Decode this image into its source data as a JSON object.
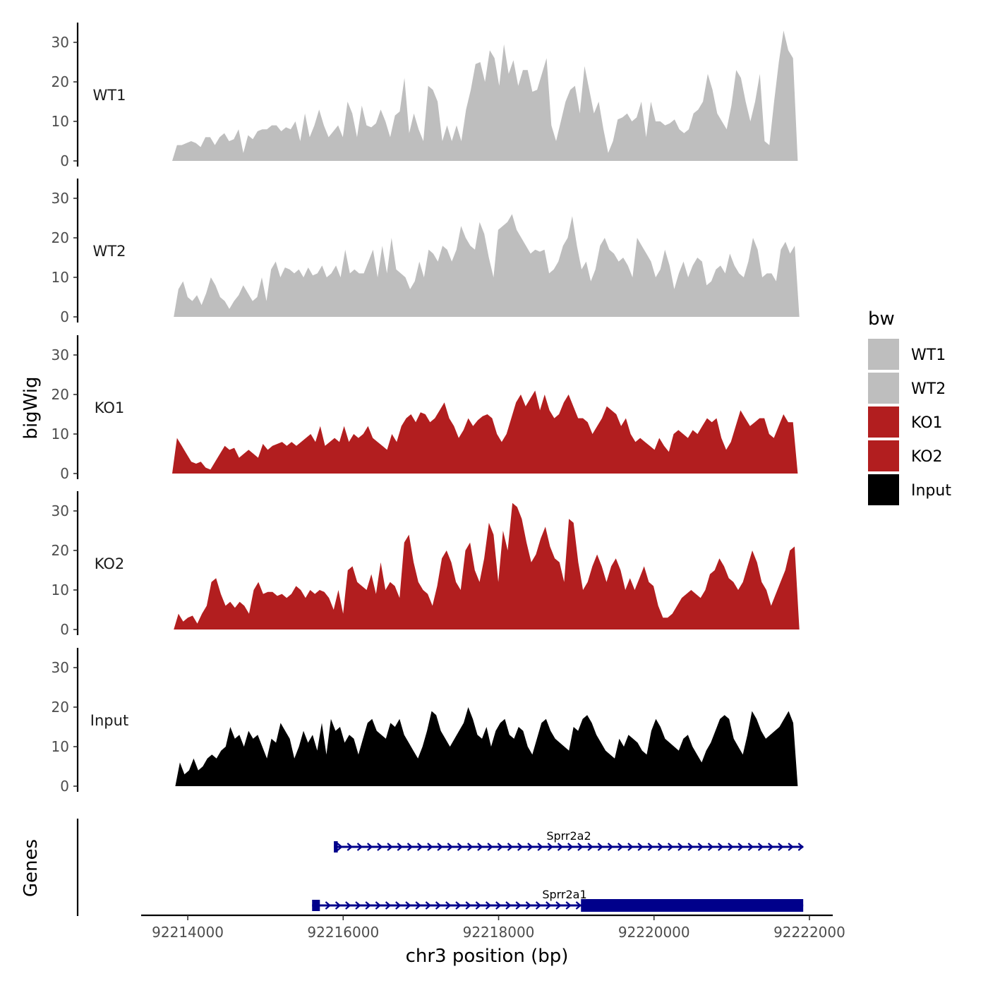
{
  "chart_data": {
    "type": "area",
    "ylabel": "bigWig",
    "xlabel": "chr3 position (bp)",
    "genes_label": "Genes",
    "ylim": [
      0,
      35
    ],
    "yticks": [
      0,
      10,
      20,
      30
    ],
    "xlim": [
      92213400,
      92222300
    ],
    "xticks": [
      92214000,
      92216000,
      92218000,
      92220000,
      92222000
    ],
    "xtick_labels": [
      "92214000",
      "92216000",
      "92218000",
      "92220000",
      "92222000"
    ],
    "legend": {
      "title": "bw",
      "position": "right",
      "entries": [
        {
          "label": "WT1",
          "color": "#bebebe"
        },
        {
          "label": "WT2",
          "color": "#bebebe"
        },
        {
          "label": "KO1",
          "color": "#b21e1f"
        },
        {
          "label": "KO2",
          "color": "#b21e1f"
        },
        {
          "label": "Input",
          "color": "#000000"
        }
      ]
    },
    "tracks": [
      {
        "name": "WT1",
        "color": "#bebebe",
        "x_start": 92213800,
        "x_end": 92221850,
        "values": [
          0,
          4,
          4,
          4.5,
          5,
          4.5,
          3.5,
          6,
          6,
          4,
          6,
          7,
          5,
          5.5,
          8,
          2,
          6.5,
          5.5,
          7.5,
          8,
          8,
          9,
          9,
          7.5,
          8.5,
          8,
          10,
          5,
          12,
          6,
          9,
          13,
          9,
          6,
          7.5,
          9,
          6,
          15,
          12,
          6,
          14,
          9,
          8.5,
          9.5,
          13,
          10,
          6,
          11.5,
          12.5,
          21,
          7,
          12,
          8,
          5,
          19,
          18,
          15,
          5,
          9,
          5,
          9,
          5,
          13,
          18,
          24.5,
          25,
          20,
          28,
          26,
          19,
          29.5,
          22,
          25.5,
          19,
          23,
          23,
          17.5,
          18,
          22,
          26,
          9,
          5,
          10,
          15,
          18,
          19,
          12,
          24,
          18,
          12,
          15,
          8,
          2,
          5,
          10.5,
          11,
          12,
          10,
          11,
          15,
          6,
          15,
          10,
          10,
          9,
          9.5,
          10.5,
          8,
          7,
          8,
          12,
          13,
          15,
          22,
          18,
          12,
          10,
          8,
          14,
          23,
          21,
          15,
          10,
          15,
          22,
          5,
          4,
          15,
          25,
          33,
          28,
          26,
          0
        ]
      },
      {
        "name": "WT2",
        "color": "#bebebe",
        "x_start": 92213820,
        "x_end": 92221870,
        "values": [
          0,
          7,
          9,
          5,
          4,
          5.5,
          3,
          6,
          10,
          8,
          5,
          4,
          2,
          4,
          5.5,
          8,
          6,
          4,
          5,
          10,
          4,
          12,
          14,
          10,
          12.5,
          12,
          11,
          12,
          10,
          12.5,
          10.5,
          11,
          13,
          10,
          11,
          13,
          10,
          17,
          11,
          12,
          11,
          11,
          14,
          17,
          10,
          18,
          11,
          20,
          12,
          11,
          10,
          7,
          9,
          14,
          10,
          17,
          16,
          14,
          18,
          17,
          14,
          17,
          23,
          20,
          18,
          17,
          24,
          21,
          15,
          10,
          22,
          23,
          24,
          26,
          22,
          20,
          18,
          16,
          17,
          16.5,
          17,
          11,
          12,
          14,
          18,
          20,
          25.5,
          18,
          12,
          14,
          9,
          12,
          18,
          20,
          17,
          16,
          14,
          15,
          13,
          10,
          20,
          18,
          16,
          14,
          10,
          12,
          17,
          13,
          7,
          11,
          14,
          10,
          13,
          15,
          14,
          8,
          9,
          12,
          13,
          11,
          16,
          13,
          11,
          10,
          14,
          20,
          17,
          10,
          11,
          11,
          9,
          17,
          19,
          16,
          18,
          0
        ]
      },
      {
        "name": "KO1",
        "color": "#b21e1f",
        "x_start": 92213800,
        "x_end": 92221850,
        "values": [
          0,
          9,
          7,
          5,
          3,
          2.5,
          3,
          1.5,
          1,
          3,
          5,
          7,
          6,
          6.5,
          4,
          5,
          6,
          5,
          4,
          7.5,
          6,
          7,
          7.5,
          8,
          7,
          8,
          7,
          8,
          9,
          10,
          8,
          12,
          7,
          8,
          9,
          8,
          12,
          8,
          10,
          9,
          10,
          12,
          9,
          8,
          7,
          6,
          10,
          8,
          12,
          14,
          15,
          13,
          15.5,
          15,
          13,
          14,
          16,
          18,
          14,
          12,
          9,
          11,
          14,
          12,
          13.5,
          14.5,
          15,
          14,
          10,
          8,
          10,
          14,
          18,
          20,
          17,
          19,
          21,
          16,
          20,
          16,
          14,
          15,
          18,
          20,
          17,
          14,
          14,
          13,
          10,
          12,
          14,
          17,
          16,
          15,
          12,
          14,
          10,
          8,
          9,
          8,
          7,
          6,
          9,
          7,
          5.5,
          10,
          11,
          10,
          9,
          11,
          10,
          12,
          14,
          13,
          14,
          9,
          6,
          8,
          12,
          16,
          14,
          12,
          13,
          14,
          14,
          10,
          9,
          12,
          15,
          13,
          13,
          0
        ]
      },
      {
        "name": "KO2",
        "color": "#b21e1f",
        "x_start": 92213820,
        "x_end": 92221870,
        "values": [
          0,
          4,
          2,
          3,
          3.5,
          1.5,
          4,
          6,
          12,
          13,
          9,
          6,
          7,
          5.5,
          7,
          6,
          4,
          10,
          12,
          9,
          9.5,
          9.5,
          8.5,
          9,
          8,
          9,
          11,
          10,
          8,
          10,
          9,
          10,
          9.5,
          8,
          5,
          10,
          4,
          15,
          16,
          12,
          11,
          10,
          14,
          9,
          17,
          10,
          12,
          11,
          8,
          22,
          24,
          17,
          12,
          10,
          9,
          6,
          11,
          18,
          20,
          17,
          12,
          10,
          20,
          22,
          15,
          12,
          18,
          27,
          24,
          12,
          25,
          20,
          32,
          31,
          28,
          22,
          17,
          19,
          23,
          26,
          21,
          18,
          17,
          12,
          28,
          27,
          17,
          10,
          12,
          16,
          19,
          16,
          12,
          16,
          18,
          15,
          10,
          13,
          10,
          13,
          16,
          12,
          11,
          6,
          3,
          3,
          4,
          6,
          8,
          9,
          10,
          9,
          8,
          10,
          14,
          15,
          18,
          16,
          13,
          12,
          10,
          12,
          16,
          20,
          17,
          12,
          10,
          6,
          9,
          12,
          15,
          20,
          21,
          0
        ]
      },
      {
        "name": "Input",
        "color": "#000000",
        "x_start": 92213840,
        "x_end": 92221850,
        "values": [
          0,
          6,
          3,
          4,
          7,
          4,
          5,
          7,
          8,
          7,
          9,
          10,
          15,
          12,
          13,
          10,
          14,
          12,
          13,
          10,
          7,
          12,
          11,
          16,
          14,
          12,
          7,
          10,
          14,
          11,
          13,
          9,
          16,
          8,
          17,
          14,
          15,
          11,
          13,
          12,
          8,
          12,
          16,
          17,
          14,
          13,
          12,
          16,
          15,
          17,
          13,
          11,
          9,
          7,
          10,
          14,
          19,
          18,
          14,
          12,
          10,
          12,
          14,
          16,
          20,
          17,
          13,
          12,
          15,
          10,
          14,
          16,
          17,
          13,
          12,
          15,
          14,
          10,
          8,
          12,
          16,
          17,
          14,
          12,
          11,
          10,
          9,
          15,
          14,
          17,
          18,
          16,
          13,
          11,
          9,
          8,
          7,
          12,
          10,
          13,
          12,
          11,
          9,
          8,
          14,
          17,
          15,
          12,
          11,
          10,
          9,
          12,
          13,
          10,
          8,
          6,
          9,
          11,
          14,
          17,
          18,
          17,
          12,
          10,
          8,
          13,
          19,
          17,
          14,
          12,
          13,
          14,
          15,
          17,
          19,
          16,
          0
        ]
      }
    ],
    "genes": [
      {
        "name": "Sprr2a2",
        "tx_start": 92215880,
        "tx_end": 92221920,
        "exons": [
          [
            92215880,
            92215930
          ]
        ],
        "strand": "+",
        "color": "#00008b"
      },
      {
        "name": "Sprr2a1",
        "tx_start": 92215600,
        "tx_end": 92221920,
        "exons": [
          [
            92215600,
            92215700
          ],
          [
            92215700,
            92215880
          ],
          [
            92219060,
            92221920
          ]
        ],
        "strand": "+",
        "color": "#00008b"
      }
    ]
  }
}
